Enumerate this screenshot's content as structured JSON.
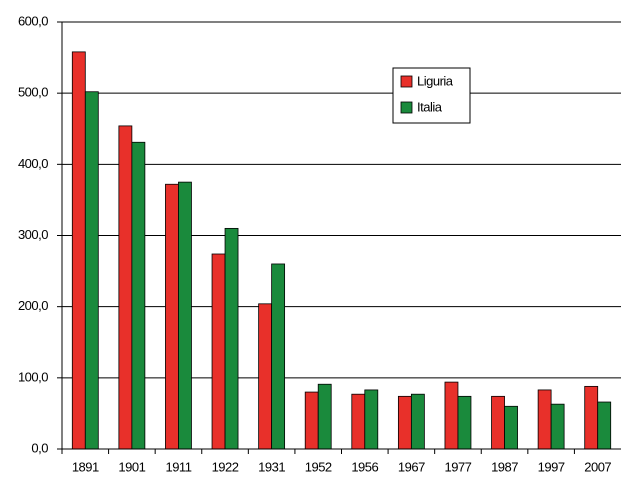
{
  "chart_data": {
    "type": "bar",
    "categories": [
      "1891",
      "1901",
      "1911",
      "1922",
      "1931",
      "1952",
      "1956",
      "1967",
      "1977",
      "1987",
      "1997",
      "2007"
    ],
    "series": [
      {
        "name": "Liguria",
        "color": "#e8302a",
        "values": [
          558,
          454,
          372,
          274,
          204,
          80,
          77,
          74,
          94,
          74,
          83,
          88
        ]
      },
      {
        "name": "Italia",
        "color": "#1a8a3c",
        "values": [
          502,
          431,
          375,
          310,
          260,
          91,
          83,
          77,
          74,
          60,
          63,
          66
        ]
      }
    ],
    "ylim": [
      0,
      600
    ],
    "yticks": [
      {
        "value": 0,
        "label": "0,0"
      },
      {
        "value": 100,
        "label": "100,0"
      },
      {
        "value": 200,
        "label": "200,0"
      },
      {
        "value": 300,
        "label": "300,0"
      },
      {
        "value": 400,
        "label": "400,0"
      },
      {
        "value": 500,
        "label": "500,0"
      },
      {
        "value": 600,
        "label": "600,0"
      }
    ],
    "grid": true,
    "legend": "upper right"
  }
}
